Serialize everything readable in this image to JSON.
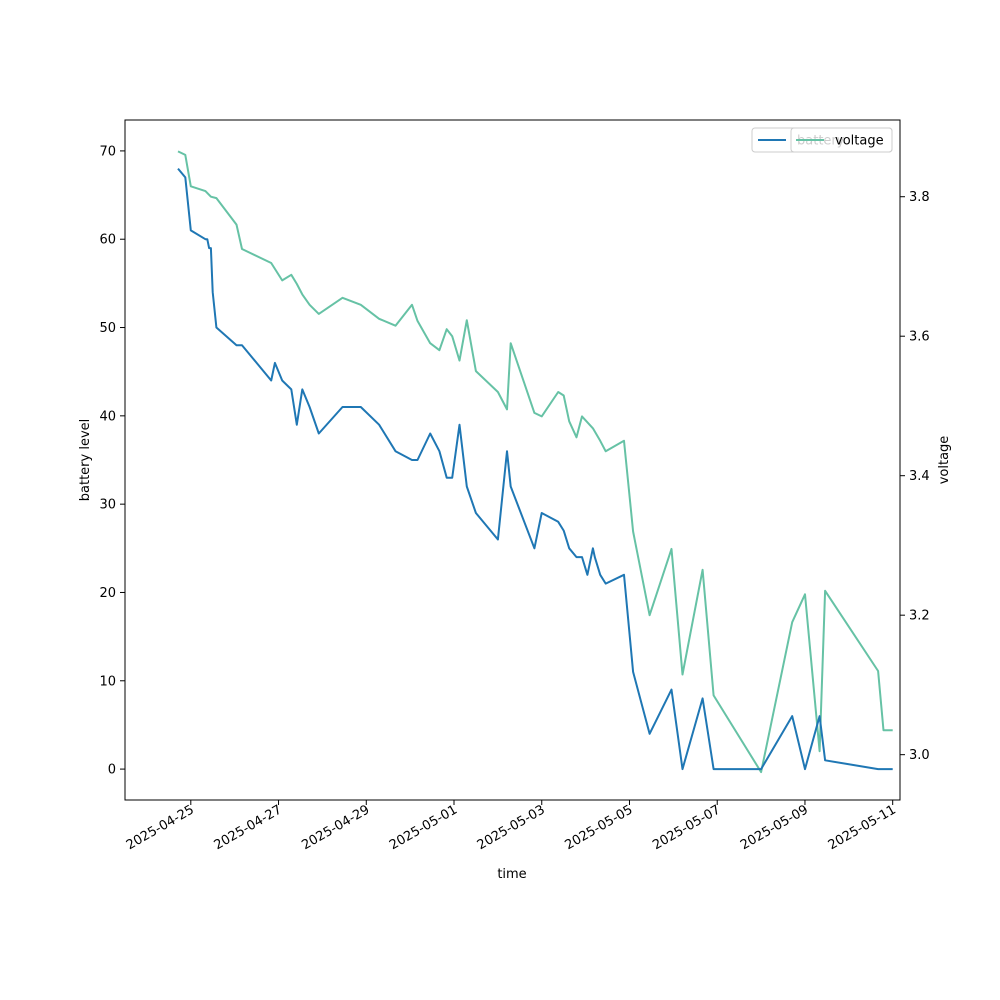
{
  "chart_data": {
    "type": "line",
    "xlabel": "time",
    "ylabel_left": "battery level",
    "ylabel_right": "voltage",
    "x_ticks": [
      "2025-04-25",
      "2025-04-27",
      "2025-04-29",
      "2025-05-01",
      "2025-05-03",
      "2025-05-05",
      "2025-05-07",
      "2025-05-09",
      "2025-05-11"
    ],
    "y_left_ticks": [
      "0",
      "10",
      "20",
      "30",
      "40",
      "50",
      "60",
      "70"
    ],
    "y_right_ticks": [
      "3.0",
      "3.2",
      "3.4",
      "3.6",
      "3.8"
    ],
    "xlim": [
      "2025-04-23 12:00",
      "2025-05-11 04:00"
    ],
    "ylim_left": [
      -3.5,
      73.5
    ],
    "ylim_right": [
      2.935,
      3.91
    ],
    "grid": false,
    "legends": [
      {
        "location": "top-right",
        "entries": [
          "battery"
        ],
        "axis": "left"
      },
      {
        "location": "top-right",
        "entries": [
          "voltage"
        ],
        "axis": "right"
      }
    ],
    "colors": {
      "battery": "#1f77b4",
      "voltage": "#66c2a5"
    },
    "series": [
      {
        "name": "battery",
        "axis": "left",
        "x": [
          "2025-04-24 17:00",
          "2025-04-24 21:00",
          "2025-04-25 00:00",
          "2025-04-25 08:00",
          "2025-04-25 09:00",
          "2025-04-25 10:00",
          "2025-04-25 11:00",
          "2025-04-25 12:00",
          "2025-04-25 14:00",
          "2025-04-26 01:00",
          "2025-04-26 04:00",
          "2025-04-26 20:00",
          "2025-04-26 22:00",
          "2025-04-27 02:00",
          "2025-04-27 07:00",
          "2025-04-27 10:00",
          "2025-04-27 13:00",
          "2025-04-27 17:00",
          "2025-04-27 22:00",
          "2025-04-28 11:00",
          "2025-04-28 21:00",
          "2025-04-29 07:00",
          "2025-04-29 16:00",
          "2025-04-30 01:00",
          "2025-04-30 04:00",
          "2025-04-30 11:00",
          "2025-04-30 16:00",
          "2025-04-30 20:00",
          "2025-04-30 23:00",
          "2025-05-01 03:00",
          "2025-05-01 07:00",
          "2025-05-01 12:00",
          "2025-05-02 00:00",
          "2025-05-02 05:00",
          "2025-05-02 07:00",
          "2025-05-02 20:00",
          "2025-05-03 00:00",
          "2025-05-03 09:00",
          "2025-05-03 12:00",
          "2025-05-03 15:00",
          "2025-05-03 19:00",
          "2025-05-03 22:00",
          "2025-05-04 01:00",
          "2025-05-04 04:00",
          "2025-05-04 05:00",
          "2025-05-04 08:00",
          "2025-05-04 11:00",
          "2025-05-04 21:00",
          "2025-05-05 02:00",
          "2025-05-05 11:00",
          "2025-05-05 23:00",
          "2025-05-06 05:00",
          "2025-05-06 16:00",
          "2025-05-06 22:00",
          "2025-05-08 00:00",
          "2025-05-08 17:00",
          "2025-05-09 00:00",
          "2025-05-09 08:00",
          "2025-05-09 11:00",
          "2025-05-10 16:00",
          "2025-05-10 19:00",
          "2025-05-10 23:00",
          "2025-05-11 00:00"
        ],
        "values": [
          68,
          67,
          61,
          60,
          60,
          59,
          59,
          54,
          50,
          48,
          48,
          44,
          46,
          44,
          43,
          39,
          43,
          41,
          38,
          41,
          41,
          39,
          36,
          35,
          35,
          38,
          36,
          33,
          33,
          39,
          32,
          29,
          26,
          36,
          32,
          25,
          29,
          28,
          27,
          25,
          24,
          24,
          22,
          25,
          24,
          22,
          21,
          22,
          11,
          4,
          9,
          0,
          8,
          0,
          0,
          6,
          0,
          6,
          1,
          0,
          0,
          0,
          0
        ]
      },
      {
        "name": "voltage",
        "axis": "right",
        "x": [
          "2025-04-24 17:00",
          "2025-04-24 21:00",
          "2025-04-25 00:00",
          "2025-04-25 08:00",
          "2025-04-25 11:00",
          "2025-04-25 14:00",
          "2025-04-26 01:00",
          "2025-04-26 04:00",
          "2025-04-26 20:00",
          "2025-04-27 02:00",
          "2025-04-27 07:00",
          "2025-04-27 10:00",
          "2025-04-27 13:00",
          "2025-04-27 17:00",
          "2025-04-27 22:00",
          "2025-04-28 11:00",
          "2025-04-28 21:00",
          "2025-04-29 07:00",
          "2025-04-29 16:00",
          "2025-04-30 01:00",
          "2025-04-30 04:00",
          "2025-04-30 11:00",
          "2025-04-30 16:00",
          "2025-04-30 20:00",
          "2025-04-30 23:00",
          "2025-05-01 03:00",
          "2025-05-01 07:00",
          "2025-05-01 12:00",
          "2025-05-02 00:00",
          "2025-05-02 05:00",
          "2025-05-02 07:00",
          "2025-05-02 20:00",
          "2025-05-03 00:00",
          "2025-05-03 09:00",
          "2025-05-03 12:00",
          "2025-05-03 15:00",
          "2025-05-03 19:00",
          "2025-05-03 22:00",
          "2025-05-04 04:00",
          "2025-05-04 08:00",
          "2025-05-04 11:00",
          "2025-05-04 21:00",
          "2025-05-05 02:00",
          "2025-05-05 11:00",
          "2025-05-05 23:00",
          "2025-05-06 05:00",
          "2025-05-06 16:00",
          "2025-05-06 22:00",
          "2025-05-08 00:00",
          "2025-05-08 17:00",
          "2025-05-09 00:00",
          "2025-05-09 08:00",
          "2025-05-09 11:00",
          "2025-05-10 16:00",
          "2025-05-10 19:00",
          "2025-05-10 23:00",
          "2025-05-11 00:00"
        ],
        "values": [
          3.865,
          3.86,
          3.815,
          3.808,
          3.8,
          3.798,
          3.76,
          3.725,
          3.705,
          3.68,
          3.688,
          3.675,
          3.66,
          3.645,
          3.632,
          3.655,
          3.645,
          3.625,
          3.615,
          3.645,
          3.622,
          3.59,
          3.58,
          3.61,
          3.6,
          3.565,
          3.623,
          3.55,
          3.52,
          3.495,
          3.59,
          3.49,
          3.485,
          3.52,
          3.515,
          3.478,
          3.455,
          3.485,
          3.468,
          3.45,
          3.435,
          3.45,
          3.32,
          3.2,
          3.295,
          3.115,
          3.265,
          3.085,
          2.975,
          3.19,
          3.23,
          3.005,
          3.235,
          3.12,
          3.035,
          3.035,
          3.035
        ]
      }
    ]
  }
}
